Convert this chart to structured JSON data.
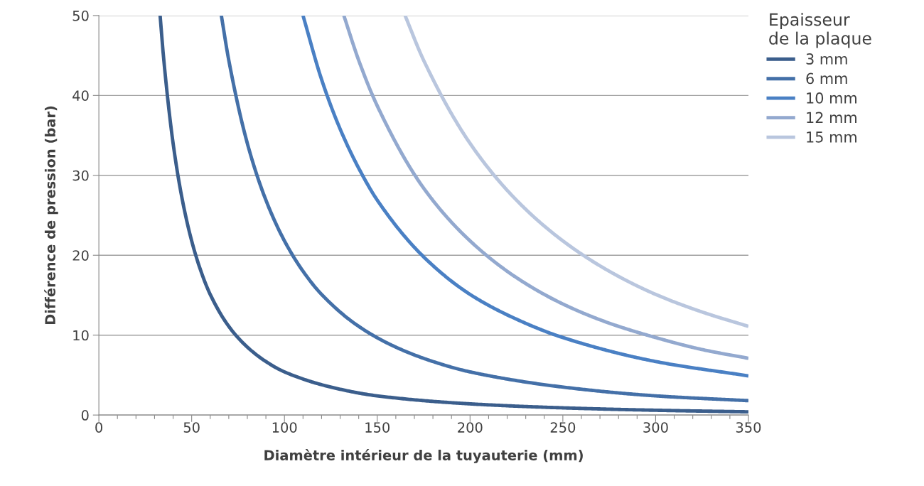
{
  "chart_data": {
    "type": "line",
    "xlabel": "Diamètre intérieur de la tuyauterie (mm)",
    "ylabel": "Différence de pression (bar)",
    "legend_title": "Epaisseur\nde la plaque",
    "legend": "top right",
    "grid": "y",
    "marker": "none",
    "line_style": "solid",
    "xlim": [
      0,
      350
    ],
    "ylim": [
      0,
      50
    ],
    "xticks": [
      0,
      {
        "value": 10,
        "label": null
      },
      {
        "value": 20,
        "label": null
      },
      {
        "value": 30,
        "label": null
      },
      {
        "value": 40,
        "label": null
      },
      50,
      {
        "value": 60,
        "label": null
      },
      {
        "value": 70,
        "label": null
      },
      {
        "value": 80,
        "label": null
      },
      {
        "value": 90,
        "label": null
      },
      100,
      {
        "value": 110,
        "label": null
      },
      {
        "value": 120,
        "label": null
      },
      {
        "value": 130,
        "label": null
      },
      {
        "value": 140,
        "label": null
      },
      150,
      {
        "value": 160,
        "label": null
      },
      {
        "value": 170,
        "label": null
      },
      {
        "value": 180,
        "label": null
      },
      {
        "value": 190,
        "label": null
      },
      200,
      {
        "value": 210,
        "label": null
      },
      {
        "value": 220,
        "label": null
      },
      {
        "value": 230,
        "label": null
      },
      {
        "value": 240,
        "label": null
      },
      250,
      {
        "value": 260,
        "label": null
      },
      {
        "value": 270,
        "label": null
      },
      {
        "value": 280,
        "label": null
      },
      {
        "value": 290,
        "label": null
      },
      300,
      {
        "value": 310,
        "label": null
      },
      {
        "value": 320,
        "label": null
      },
      {
        "value": 330,
        "label": null
      },
      {
        "value": 340,
        "label": null
      },
      350
    ],
    "yticks": [
      0,
      10,
      20,
      30,
      40,
      50
    ],
    "series": [
      {
        "name": "3 mm",
        "color": "#3b5e8c",
        "x": [
          33,
          35,
          40,
          45,
          50,
          55,
          60,
          70,
          80,
          90,
          100,
          125,
          150,
          200,
          250,
          300,
          350
        ],
        "values": [
          50.0,
          44.4,
          34.0,
          26.9,
          21.8,
          18.0,
          15.1,
          11.1,
          8.5,
          6.7,
          5.4,
          3.5,
          2.4,
          1.4,
          0.9,
          0.6,
          0.4
        ]
      },
      {
        "name": "6 mm",
        "color": "#4470a8",
        "x": [
          66,
          70,
          80,
          90,
          100,
          110,
          120,
          140,
          160,
          180,
          200,
          250,
          300,
          350
        ],
        "values": [
          50.0,
          44.4,
          34.0,
          26.9,
          21.8,
          18.0,
          15.1,
          11.1,
          8.5,
          6.7,
          5.4,
          3.5,
          2.4,
          1.8
        ]
      },
      {
        "name": "10 mm",
        "color": "#4a80c4",
        "x": [
          110,
          120,
          130,
          140,
          150,
          175,
          200,
          225,
          250,
          300,
          350
        ],
        "values": [
          50.0,
          42.0,
          35.8,
          30.9,
          26.9,
          19.8,
          15.1,
          12.0,
          9.7,
          6.7,
          4.9
        ]
      },
      {
        "name": "12 mm",
        "color": "#93a9cf",
        "x": [
          132,
          140,
          150,
          175,
          200,
          225,
          250,
          275,
          300,
          325,
          350
        ],
        "values": [
          50.0,
          44.4,
          38.7,
          28.4,
          21.8,
          17.2,
          13.9,
          11.5,
          9.7,
          8.2,
          7.1
        ]
      },
      {
        "name": "15 mm",
        "color": "#b9c6de",
        "x": [
          165,
          175,
          200,
          225,
          250,
          275,
          300,
          325,
          350
        ],
        "values": [
          50.0,
          44.4,
          34.0,
          26.9,
          21.8,
          18.0,
          15.1,
          12.9,
          11.1
        ]
      }
    ]
  }
}
